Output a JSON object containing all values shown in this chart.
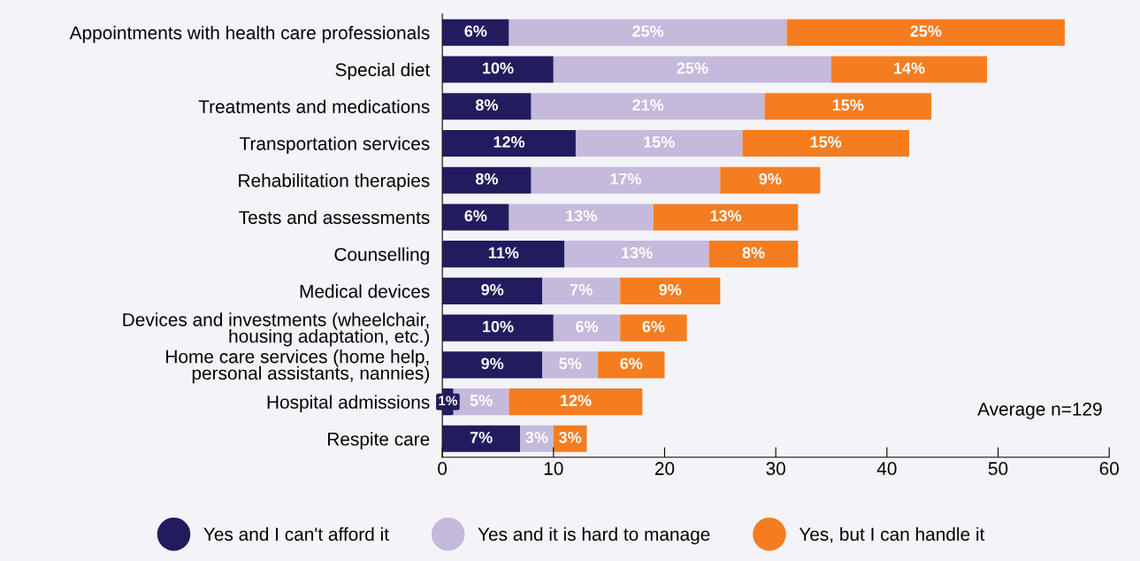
{
  "chart_data": {
    "type": "bar",
    "orientation": "horizontal",
    "stacked": true,
    "categories": [
      "Appointments with health care professionals",
      "Special diet",
      "Treatments and medications",
      "Transportation services",
      "Rehabilitation therapies",
      "Tests and assessments",
      "Counselling",
      "Medical devices",
      "Devices and investments (wheelchair,\nhousing adaptation, etc.)",
      "Home care services (home help,\npersonal assistants, nannies)",
      "Hospital admissions",
      "Respite care"
    ],
    "series": [
      {
        "name": "Yes and I can't afford it",
        "color": "#221c5e",
        "values": [
          6,
          10,
          8,
          12,
          8,
          6,
          11,
          9,
          10,
          9,
          1,
          7
        ],
        "value_labels": [
          "6%",
          "10%",
          "8%",
          "12%",
          "8%",
          "6%",
          "11%",
          "9%",
          "10%",
          "9%",
          "1%",
          "7%"
        ]
      },
      {
        "name": "Yes and it is hard to manage",
        "color": "#c5b9dc",
        "values": [
          25,
          25,
          21,
          15,
          17,
          13,
          13,
          7,
          6,
          5,
          5,
          3
        ],
        "value_labels": [
          "25%",
          "25%",
          "21%",
          "15%",
          "17%",
          "13%",
          "13%",
          "7%",
          "6%",
          "5%",
          "5%",
          "3%"
        ]
      },
      {
        "name": "Yes, but I can handle it",
        "color": "#f47d20",
        "values": [
          25,
          14,
          15,
          15,
          9,
          13,
          8,
          9,
          6,
          6,
          12,
          3
        ],
        "value_labels": [
          "25%",
          "14%",
          "15%",
          "15%",
          "9%",
          "13%",
          "8%",
          "9%",
          "6%",
          "6%",
          "12%",
          "3%"
        ]
      }
    ],
    "xlim": [
      0,
      60
    ],
    "xticks": [
      0,
      10,
      20,
      30,
      40,
      50,
      60
    ],
    "grid": false,
    "legend": "bottom",
    "annotations": [
      {
        "text": "Average n=129"
      }
    ]
  }
}
